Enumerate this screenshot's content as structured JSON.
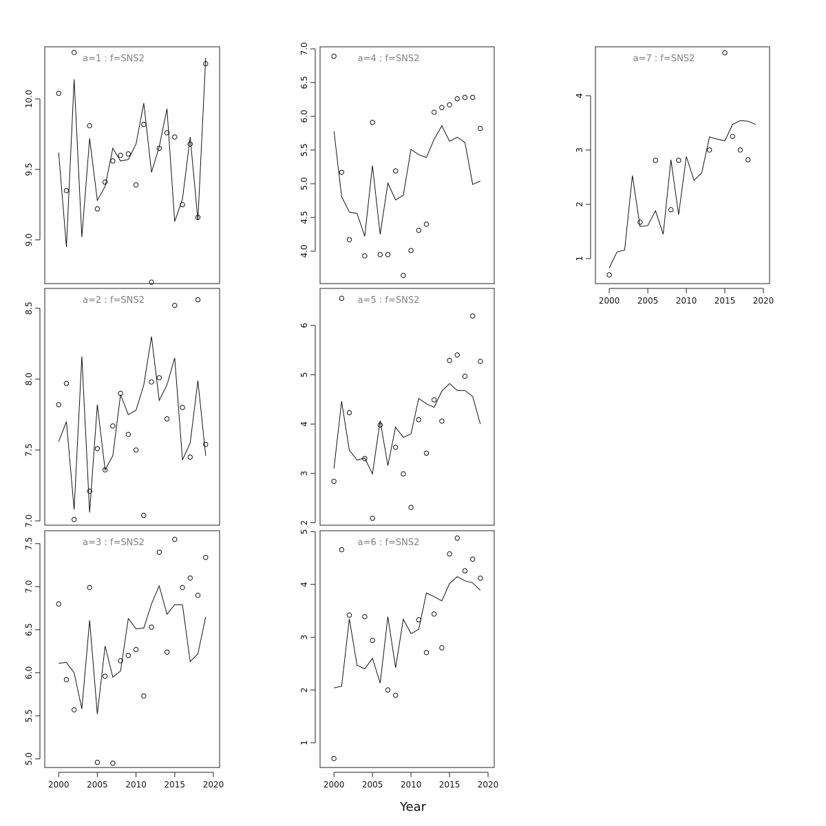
{
  "chart_data": {
    "type": "scatter",
    "xlabel": "Year",
    "x": [
      2000,
      2001,
      2002,
      2003,
      2004,
      2005,
      2006,
      2007,
      2008,
      2009,
      2010,
      2011,
      2012,
      2013,
      2014,
      2015,
      2016,
      2017,
      2018,
      2019
    ],
    "panels": [
      {
        "title": "a=1  :  f=SNS2",
        "yticks": [
          9.0,
          9.5,
          10.0
        ],
        "xticks": [],
        "ylim": [
          8.69,
          10.37
        ],
        "xlim": [
          1998.2,
          2020.8
        ],
        "line": [
          9.62,
          8.95,
          10.14,
          9.02,
          9.72,
          9.28,
          9.38,
          9.65,
          9.56,
          9.57,
          9.68,
          9.97,
          9.48,
          9.66,
          9.93,
          9.13,
          9.29,
          9.73,
          9.14,
          10.29
        ],
        "points": [
          [
            2000,
            10.04
          ],
          [
            2001,
            9.35
          ],
          [
            2002,
            10.33
          ],
          [
            2004,
            9.81
          ],
          [
            2005,
            9.22
          ],
          [
            2006,
            9.41
          ],
          [
            2007,
            9.56
          ],
          [
            2008,
            9.6
          ],
          [
            2009,
            9.61
          ],
          [
            2010,
            9.39
          ],
          [
            2011,
            9.82
          ],
          [
            2012,
            8.7
          ],
          [
            2013,
            9.65
          ],
          [
            2014,
            9.76
          ],
          [
            2015,
            9.73
          ],
          [
            2016,
            9.25
          ],
          [
            2017,
            9.68
          ],
          [
            2018,
            9.16
          ],
          [
            2019,
            10.25
          ]
        ]
      },
      {
        "title": "a=2  :  f=SNS2",
        "yticks": [
          7.0,
          7.5,
          8.0,
          8.5
        ],
        "xticks": [],
        "ylim": [
          6.97,
          8.64
        ],
        "xlim": [
          1998.2,
          2020.8
        ],
        "line": [
          7.56,
          7.7,
          7.08,
          8.16,
          7.06,
          7.82,
          7.36,
          7.46,
          7.89,
          7.75,
          7.78,
          7.96,
          8.3,
          7.85,
          7.96,
          8.15,
          7.43,
          7.55,
          7.99,
          7.46
        ],
        "points": [
          [
            2000,
            7.82
          ],
          [
            2001,
            7.97
          ],
          [
            2002,
            7.01
          ],
          [
            2004,
            7.21
          ],
          [
            2005,
            7.51
          ],
          [
            2006,
            7.36
          ],
          [
            2007,
            7.67
          ],
          [
            2008,
            7.9
          ],
          [
            2009,
            7.61
          ],
          [
            2010,
            7.5
          ],
          [
            2011,
            7.04
          ],
          [
            2012,
            7.98
          ],
          [
            2013,
            8.01
          ],
          [
            2014,
            7.72
          ],
          [
            2015,
            8.52
          ],
          [
            2016,
            7.8
          ],
          [
            2017,
            7.45
          ],
          [
            2018,
            8.56
          ],
          [
            2019,
            7.54
          ]
        ]
      },
      {
        "title": "a=3  :  f=SNS2",
        "yticks": [
          5.0,
          5.5,
          6.0,
          6.5,
          7.0,
          7.5
        ],
        "xticks": [
          2000,
          2005,
          2010,
          2015,
          2020
        ],
        "ylim": [
          4.9,
          7.65
        ],
        "xlim": [
          1998.2,
          2020.8
        ],
        "line": [
          6.11,
          6.12,
          6.0,
          5.58,
          6.61,
          5.52,
          6.31,
          5.95,
          6.02,
          6.63,
          6.51,
          6.52,
          6.8,
          7.01,
          6.68,
          6.79,
          6.79,
          6.13,
          6.22,
          6.65
        ],
        "points": [
          [
            2000,
            6.8
          ],
          [
            2001,
            5.92
          ],
          [
            2002,
            5.57
          ],
          [
            2004,
            6.99
          ],
          [
            2005,
            4.96
          ],
          [
            2006,
            5.96
          ],
          [
            2007,
            4.95
          ],
          [
            2008,
            6.14
          ],
          [
            2009,
            6.2
          ],
          [
            2010,
            6.27
          ],
          [
            2011,
            5.73
          ],
          [
            2012,
            6.53
          ],
          [
            2013,
            7.4
          ],
          [
            2014,
            6.24
          ],
          [
            2015,
            7.55
          ],
          [
            2016,
            6.99
          ],
          [
            2017,
            7.1
          ],
          [
            2018,
            6.9
          ],
          [
            2019,
            7.34
          ]
        ]
      },
      {
        "title": "a=4  :  f=SNS2",
        "yticks": [
          4.0,
          4.5,
          5.0,
          5.5,
          6.0,
          6.5,
          7.0
        ],
        "xticks": [],
        "ylim": [
          3.52,
          7.03
        ],
        "xlim": [
          1998.2,
          2020.8
        ],
        "line": [
          5.78,
          4.81,
          4.58,
          4.56,
          4.22,
          5.27,
          4.25,
          5.01,
          4.76,
          4.83,
          5.51,
          5.43,
          5.39,
          5.66,
          5.86,
          5.63,
          5.69,
          5.61,
          4.99,
          5.04
        ],
        "points": [
          [
            2000,
            6.89
          ],
          [
            2001,
            5.17
          ],
          [
            2002,
            4.17
          ],
          [
            2004,
            3.93
          ],
          [
            2005,
            5.91
          ],
          [
            2006,
            3.95
          ],
          [
            2007,
            3.95
          ],
          [
            2008,
            5.19
          ],
          [
            2009,
            3.64
          ],
          [
            2010,
            4.01
          ],
          [
            2011,
            4.31
          ],
          [
            2012,
            4.4
          ],
          [
            2013,
            6.06
          ],
          [
            2014,
            6.13
          ],
          [
            2015,
            6.17
          ],
          [
            2016,
            6.26
          ],
          [
            2017,
            6.28
          ],
          [
            2018,
            6.28
          ],
          [
            2019,
            5.82
          ]
        ]
      },
      {
        "title": "a=5  :  f=SNS2",
        "yticks": [
          2,
          3,
          4,
          5,
          6
        ],
        "xticks": [],
        "ylim": [
          1.95,
          6.75
        ],
        "xlim": [
          1998.2,
          2020.8
        ],
        "line": [
          3.1,
          4.46,
          3.47,
          3.27,
          3.31,
          2.99,
          4.07,
          3.16,
          3.94,
          3.73,
          3.8,
          4.52,
          4.41,
          4.34,
          4.67,
          4.82,
          4.68,
          4.68,
          4.56,
          4.0
        ],
        "points": [
          [
            2000,
            2.84
          ],
          [
            2001,
            6.55
          ],
          [
            2002,
            4.23
          ],
          [
            2004,
            3.3
          ],
          [
            2005,
            2.09
          ],
          [
            2006,
            3.98
          ],
          [
            2008,
            3.53
          ],
          [
            2009,
            2.99
          ],
          [
            2010,
            2.31
          ],
          [
            2011,
            4.09
          ],
          [
            2012,
            3.41
          ],
          [
            2013,
            4.49
          ],
          [
            2014,
            4.06
          ],
          [
            2015,
            5.29
          ],
          [
            2016,
            5.4
          ],
          [
            2017,
            4.97
          ],
          [
            2018,
            6.19
          ],
          [
            2019,
            5.27
          ]
        ]
      },
      {
        "title": "a=6  :  f=SNS2",
        "yticks": [
          1,
          2,
          3,
          4,
          5
        ],
        "xticks": [
          2000,
          2005,
          2010,
          2015,
          2020
        ],
        "ylim": [
          0.53,
          5.02
        ],
        "xlim": [
          1998.2,
          2020.8
        ],
        "line": [
          2.04,
          2.07,
          3.35,
          2.47,
          2.4,
          2.6,
          2.13,
          3.39,
          2.42,
          3.34,
          3.07,
          3.15,
          3.84,
          3.77,
          3.69,
          4.02,
          4.15,
          4.07,
          4.03,
          3.89
        ],
        "points": [
          [
            2000,
            0.7
          ],
          [
            2001,
            4.66
          ],
          [
            2002,
            3.42
          ],
          [
            2004,
            3.39
          ],
          [
            2005,
            2.94
          ],
          [
            2007,
            2.0
          ],
          [
            2008,
            1.9
          ],
          [
            2011,
            3.33
          ],
          [
            2012,
            2.71
          ],
          [
            2013,
            3.44
          ],
          [
            2014,
            2.8
          ],
          [
            2015,
            4.58
          ],
          [
            2016,
            4.88
          ],
          [
            2017,
            4.26
          ],
          [
            2018,
            4.48
          ],
          [
            2019,
            4.12
          ]
        ]
      },
      {
        "title": "a=7  :  f=SNS2",
        "yticks": [
          1,
          2,
          3,
          4
        ],
        "xticks": [
          2000,
          2005,
          2010,
          2015,
          2020
        ],
        "ylim": [
          0.54,
          4.9
        ],
        "xlim": [
          1998.2,
          2020.8
        ],
        "line": [
          0.83,
          1.12,
          1.16,
          2.53,
          1.59,
          1.61,
          1.88,
          1.45,
          2.82,
          1.81,
          2.88,
          2.44,
          2.58,
          3.24,
          3.2,
          3.17,
          3.47,
          3.54,
          3.53,
          3.47
        ],
        "points": [
          [
            2000,
            0.7
          ],
          [
            2004,
            1.67
          ],
          [
            2006,
            2.81
          ],
          [
            2008,
            1.9
          ],
          [
            2009,
            2.81
          ],
          [
            2013,
            3.0
          ],
          [
            2015,
            4.79
          ],
          [
            2016,
            3.25
          ],
          [
            2017,
            3.0
          ],
          [
            2018,
            2.82
          ]
        ]
      }
    ]
  }
}
